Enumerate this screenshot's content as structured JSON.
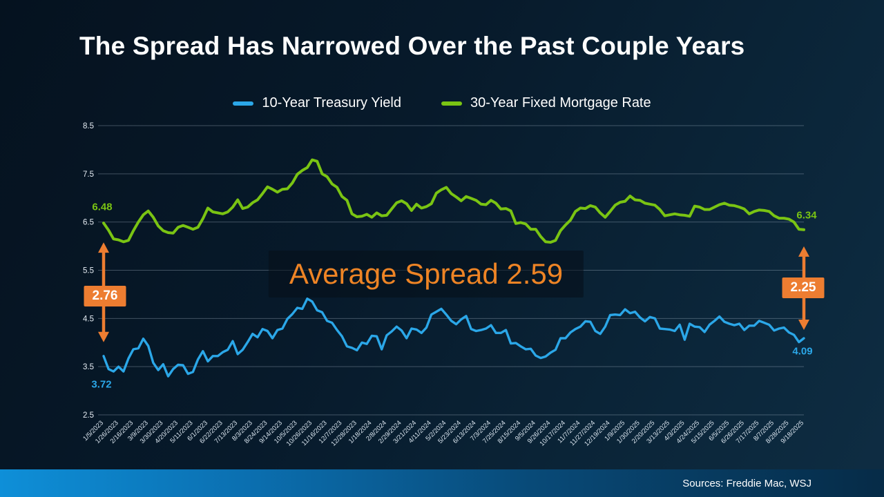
{
  "slide": {
    "title": "The Spread Has Narrowed Over the Past Couple Years",
    "source": "Sources: Freddie Mac, WSJ"
  },
  "legend": [
    {
      "label": "10-Year Treasury Yield",
      "color": "#2BA7E8"
    },
    {
      "label": "30-Year Fixed Mortgage Rate",
      "color": "#7AC413"
    }
  ],
  "annotations": {
    "average": "Average Spread 2.59",
    "left_spread": "2.76",
    "right_spread": "2.25",
    "treasury_start": "3.72",
    "treasury_end": "4.09",
    "mortgage_start": "6.48",
    "mortgage_end": "6.34",
    "arrow_color": "#ED7D31",
    "average_color": "#EE8425"
  },
  "chart_data": {
    "type": "line",
    "title": "The Spread Has Narrowed Over the Past Couple Years",
    "xlabel": "",
    "ylabel": "",
    "ylim": [
      2.5,
      8.5
    ],
    "y_ticks": [
      2.5,
      3.5,
      4.5,
      5.5,
      6.5,
      7.5,
      8.5
    ],
    "grid": true,
    "legend_position": "top",
    "label_every": 3,
    "x_labels": [
      "1/5/2023",
      "1/26/2023",
      "2/16/2023",
      "3/9/2023",
      "3/30/2023",
      "4/20/2023",
      "5/11/2023",
      "6/1/2023",
      "6/22/2023",
      "7/13/2023",
      "8/3/2023",
      "8/24/2023",
      "9/14/2023",
      "10/5/2023",
      "10/26/2023",
      "11/16/2023",
      "12/7/2023",
      "12/28/2023",
      "1/18/2024",
      "2/8/2024",
      "2/29/2024",
      "3/21/2024",
      "4/11/2024",
      "5/2/2024",
      "5/23/2024",
      "6/13/2024",
      "7/3/2024",
      "7/25/2024",
      "8/15/2024",
      "9/5/2024",
      "9/26/2024",
      "10/17/2024",
      "11/7/2024",
      "11/27/2024",
      "12/19/2024",
      "1/9/2025",
      "1/30/2025",
      "2/20/2025",
      "3/13/2025",
      "4/3/2025",
      "4/24/2025",
      "5/15/2025",
      "6/5/2025",
      "6/26/2025",
      "7/17/2025",
      "8/7/2025",
      "8/28/2025",
      "9/18/2025"
    ],
    "series": [
      {
        "name": "10-Year Treasury Yield",
        "color": "#2BA7E8",
        "values": [
          3.72,
          3.45,
          3.4,
          3.5,
          3.4,
          3.67,
          3.86,
          3.88,
          4.08,
          3.93,
          3.58,
          3.43,
          3.55,
          3.3,
          3.45,
          3.54,
          3.53,
          3.35,
          3.39,
          3.65,
          3.82,
          3.61,
          3.72,
          3.72,
          3.8,
          3.85,
          4.03,
          3.76,
          3.85,
          4.01,
          4.18,
          4.11,
          4.28,
          4.24,
          4.09,
          4.26,
          4.29,
          4.49,
          4.59,
          4.72,
          4.7,
          4.91,
          4.85,
          4.67,
          4.63,
          4.45,
          4.41,
          4.26,
          4.13,
          3.92,
          3.89,
          3.84,
          4.0,
          3.97,
          4.14,
          4.13,
          3.86,
          4.15,
          4.23,
          4.33,
          4.25,
          4.09,
          4.29,
          4.27,
          4.2,
          4.31,
          4.58,
          4.64,
          4.7,
          4.58,
          4.45,
          4.38,
          4.48,
          4.55,
          4.28,
          4.24,
          4.26,
          4.29,
          4.36,
          4.2,
          4.2,
          4.26,
          3.98,
          3.99,
          3.92,
          3.86,
          3.87,
          3.73,
          3.68,
          3.71,
          3.79,
          3.85,
          4.09,
          4.09,
          4.21,
          4.28,
          4.33,
          4.44,
          4.43,
          4.24,
          4.18,
          4.33,
          4.57,
          4.58,
          4.57,
          4.69,
          4.61,
          4.64,
          4.52,
          4.44,
          4.53,
          4.5,
          4.29,
          4.28,
          4.27,
          4.24,
          4.37,
          4.06,
          4.39,
          4.33,
          4.32,
          4.22,
          4.37,
          4.45,
          4.54,
          4.43,
          4.39,
          4.36,
          4.39,
          4.26,
          4.35,
          4.35,
          4.45,
          4.41,
          4.37,
          4.25,
          4.29,
          4.31,
          4.21,
          4.16,
          4.01,
          4.09
        ]
      },
      {
        "name": "30-Year Fixed Mortgage Rate",
        "color": "#7AC413",
        "values": [
          6.48,
          6.33,
          6.15,
          6.13,
          6.09,
          6.12,
          6.32,
          6.5,
          6.65,
          6.73,
          6.6,
          6.42,
          6.32,
          6.28,
          6.27,
          6.39,
          6.43,
          6.39,
          6.35,
          6.39,
          6.57,
          6.79,
          6.71,
          6.69,
          6.67,
          6.71,
          6.81,
          6.96,
          6.78,
          6.81,
          6.9,
          6.96,
          7.09,
          7.23,
          7.18,
          7.12,
          7.18,
          7.19,
          7.31,
          7.49,
          7.57,
          7.63,
          7.79,
          7.76,
          7.5,
          7.44,
          7.29,
          7.22,
          7.03,
          6.95,
          6.67,
          6.61,
          6.62,
          6.66,
          6.6,
          6.69,
          6.63,
          6.64,
          6.77,
          6.9,
          6.94,
          6.88,
          6.74,
          6.87,
          6.79,
          6.82,
          6.88,
          7.1,
          7.17,
          7.22,
          7.09,
          7.02,
          6.94,
          7.03,
          6.99,
          6.95,
          6.87,
          6.86,
          6.95,
          6.89,
          6.77,
          6.78,
          6.73,
          6.47,
          6.49,
          6.46,
          6.35,
          6.35,
          6.2,
          6.09,
          6.08,
          6.12,
          6.32,
          6.44,
          6.54,
          6.72,
          6.79,
          6.78,
          6.84,
          6.81,
          6.69,
          6.6,
          6.72,
          6.85,
          6.91,
          6.93,
          7.04,
          6.96,
          6.95,
          6.89,
          6.87,
          6.85,
          6.76,
          6.63,
          6.65,
          6.67,
          6.65,
          6.64,
          6.62,
          6.83,
          6.81,
          6.76,
          6.76,
          6.81,
          6.86,
          6.89,
          6.85,
          6.84,
          6.81,
          6.77,
          6.67,
          6.72,
          6.75,
          6.74,
          6.72,
          6.63,
          6.58,
          6.58,
          6.56,
          6.5,
          6.35,
          6.34
        ]
      }
    ]
  }
}
